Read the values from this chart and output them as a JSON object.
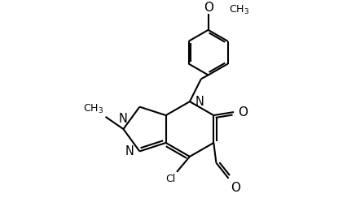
{
  "bg": "#ffffff",
  "lc": "#000000",
  "lw": 1.5,
  "fs": 9.0,
  "xlim": [
    0,
    10
  ],
  "ylim": [
    0,
    6.5
  ]
}
